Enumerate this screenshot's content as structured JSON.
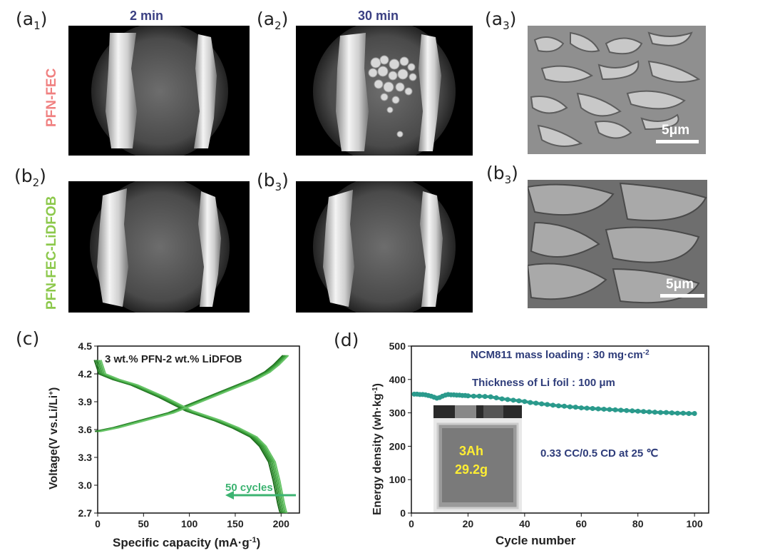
{
  "panels": {
    "a1": {
      "label": "(a",
      "sub": "1",
      "close": ")"
    },
    "a2": {
      "label": "(a",
      "sub": "2",
      "close": ")"
    },
    "a3": {
      "label": "(a",
      "sub": "3",
      "close": ")"
    },
    "b2": {
      "label": "(b",
      "sub": "2",
      "close": ")"
    },
    "b3": {
      "label": "(b",
      "sub": "3",
      "close": ")"
    },
    "b3sem": {
      "label": "(b",
      "sub": "3",
      "close": ")"
    },
    "c": {
      "label": "(c)"
    },
    "d": {
      "label": "(d)"
    }
  },
  "times": {
    "t1": "2 min",
    "t2": "30 min"
  },
  "row_labels": {
    "top": {
      "text": "PFN-FEC",
      "color": "#f08080"
    },
    "bottom": {
      "text": "PFN-FEC-LiDFOB",
      "color": "#8cc84b"
    }
  },
  "scalebar": {
    "a3": "5μm",
    "b3": "5μm"
  },
  "pouch": {
    "capacity": "3Ah",
    "mass": "29.2g"
  },
  "chart_data": [
    {
      "type": "line",
      "id": "c",
      "annotation": "3 wt.%  PFN-2 wt.%  LiDFOB",
      "arrow_label": "50 cycles",
      "xlabel": "Specific capacity (mA·g",
      "xlabel_sup": "-1",
      "xlabel_end": ")",
      "ylabel": "Voltage(V vs.Li/Li",
      "ylabel_sup": "+",
      "ylabel_end": ")",
      "xlim": [
        0,
        220
      ],
      "ylim": [
        2.7,
        4.5
      ],
      "xticks": [
        0,
        50,
        100,
        150,
        200
      ],
      "yticks": [
        2.7,
        3.0,
        3.3,
        3.6,
        3.9,
        4.2,
        4.5
      ],
      "yticklabels": [
        "2.7",
        "3.0",
        "3.3",
        "3.6",
        "3.9",
        "4.2",
        "4.5"
      ],
      "color": "#2e8b2e",
      "charge": {
        "x": [
          0,
          20,
          50,
          80,
          100,
          130,
          150,
          170,
          185,
          195,
          200,
          205
        ],
        "y": [
          3.58,
          3.62,
          3.7,
          3.78,
          3.86,
          3.98,
          4.06,
          4.14,
          4.22,
          4.3,
          4.35,
          4.4
        ]
      },
      "discharge": {
        "x": [
          0,
          5,
          20,
          40,
          70,
          100,
          130,
          150,
          170,
          180,
          190,
          195,
          198,
          200,
          202,
          203
        ],
        "y": [
          4.35,
          4.2,
          4.14,
          4.08,
          3.95,
          3.8,
          3.7,
          3.62,
          3.52,
          3.42,
          3.25,
          3.05,
          2.9,
          2.8,
          2.72,
          2.7
        ]
      },
      "cycle_offsets": [
        -6,
        -3,
        0,
        3,
        6
      ]
    },
    {
      "type": "scatter",
      "id": "d",
      "xlabel": "Cycle number",
      "ylabel": "Energy density (wh·kg",
      "ylabel_sup": "-1",
      "ylabel_end": ")",
      "xlim": [
        0,
        105
      ],
      "ylim": [
        0,
        500
      ],
      "xticks": [
        0,
        20,
        40,
        60,
        80,
        100
      ],
      "yticks": [
        0,
        100,
        200,
        300,
        400,
        500
      ],
      "color": "#2a9a8c",
      "annotations": [
        "NCM811 mass loading : 30 mg·cm",
        "Thickness of Li foil : 100 μm",
        "0.33 CC/0.5 CD at 25 ℃"
      ],
      "annotation_sup": "-2",
      "x": [
        1,
        2,
        3,
        4,
        5,
        6,
        7,
        8,
        9,
        10,
        11,
        12,
        13,
        14,
        15,
        16,
        17,
        18,
        19,
        20,
        22,
        24,
        26,
        28,
        30,
        32,
        34,
        36,
        38,
        40,
        42,
        44,
        46,
        48,
        50,
        52,
        54,
        56,
        58,
        60,
        62,
        64,
        66,
        68,
        70,
        72,
        74,
        76,
        78,
        80,
        82,
        84,
        86,
        88,
        90,
        92,
        94,
        96,
        98,
        100
      ],
      "y": [
        356,
        356,
        355,
        355,
        354,
        352,
        350,
        347,
        344,
        346,
        350,
        353,
        355,
        354,
        354,
        353,
        353,
        352,
        352,
        351,
        350,
        350,
        349,
        348,
        345,
        342,
        340,
        338,
        336,
        334,
        331,
        329,
        327,
        325,
        323,
        321,
        320,
        318,
        317,
        315,
        314,
        313,
        312,
        311,
        310,
        309,
        308,
        307,
        306,
        305,
        304,
        303,
        302,
        301,
        301,
        300,
        299,
        299,
        298,
        298
      ]
    }
  ]
}
